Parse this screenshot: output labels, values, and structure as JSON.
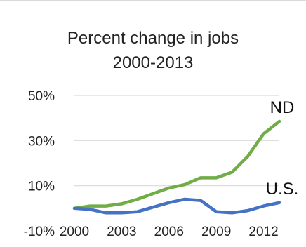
{
  "chart_data": {
    "type": "line",
    "title": [
      "Percent change in jobs",
      "2000-2013"
    ],
    "xlabel": "",
    "ylabel": "",
    "x": [
      2000,
      2001,
      2002,
      2003,
      2004,
      2005,
      2006,
      2007,
      2008,
      2009,
      2010,
      2011,
      2012,
      2013
    ],
    "xlim": [
      2000,
      2013
    ],
    "ylim": [
      -10,
      50
    ],
    "x_ticks": [
      "2000",
      "2003",
      "2006",
      "2009",
      "2012"
    ],
    "y_ticks": [
      "50%",
      "30%",
      "10%",
      "-10%"
    ],
    "grid": "horizontal",
    "legend": "none (direct labels at line ends)",
    "series": [
      {
        "name": "ND",
        "color": "#70ad47",
        "values": [
          0,
          1,
          1,
          2,
          4,
          6.5,
          9,
          10.5,
          13.5,
          13.5,
          16,
          23,
          33,
          38.5
        ]
      },
      {
        "name": "U.S.",
        "color": "#4472c4",
        "values": [
          0,
          -0.5,
          -2,
          -2,
          -1.5,
          0.5,
          2.5,
          4,
          3.5,
          -1.5,
          -2,
          -1,
          1,
          2.5
        ]
      }
    ]
  }
}
